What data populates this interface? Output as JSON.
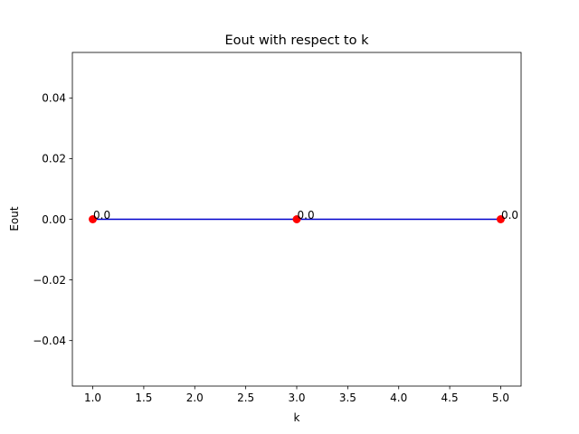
{
  "chart_data": {
    "type": "line",
    "title": "Eout with respect to k",
    "xlabel": "k",
    "ylabel": "Eout",
    "x": [
      1,
      3,
      5
    ],
    "series": [
      {
        "values": [
          0.0,
          0.0,
          0.0
        ],
        "line_color": "#0000cc",
        "marker_color": "#ff0000",
        "point_labels": [
          "0.0",
          "0.0",
          "0.0"
        ]
      }
    ],
    "xlim": [
      0.8,
      5.2
    ],
    "ylim": [
      -0.055,
      0.055
    ],
    "xticks": [
      1.0,
      1.5,
      2.0,
      2.5,
      3.0,
      3.5,
      4.0,
      4.5,
      5.0
    ],
    "xtick_labels": [
      "1.0",
      "1.5",
      "2.0",
      "2.5",
      "3.0",
      "3.5",
      "4.0",
      "4.5",
      "5.0"
    ],
    "yticks": [
      -0.04,
      -0.02,
      0.0,
      0.02,
      0.04
    ],
    "ytick_labels": [
      "−0.04",
      "−0.02",
      "0.00",
      "0.02",
      "0.04"
    ],
    "grid": false,
    "legend": false
  }
}
